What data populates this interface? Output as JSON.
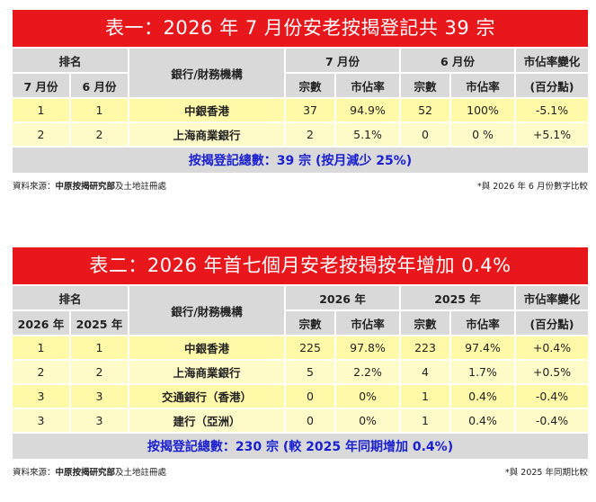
{
  "table1": {
    "title": "表一：2026 年 7 月份安老按揭登記共 39 宗",
    "headers": {
      "rank": "排名",
      "bank": "銀行/財務機構",
      "period_a": "7 月份",
      "period_b": "6 月份",
      "share_change": "市佔率變化",
      "rank_a": "7 月份",
      "rank_b": "6 月份",
      "count_a": "宗數",
      "share_a": "市佔率",
      "count_b": "宗數",
      "share_b": "市佔率",
      "share_change_unit": "(百分點)"
    },
    "rows": [
      {
        "rank_a": "1",
        "rank_b": "1",
        "bank": "中銀香港",
        "count_a": "37",
        "share_a": "94.9%",
        "count_b": "52",
        "share_b": "100%",
        "change": "-5.1%"
      },
      {
        "rank_a": "2",
        "rank_b": "2",
        "bank": "上海商業銀行",
        "count_a": "2",
        "share_a": "5.1%",
        "count_b": "0",
        "share_b": "0 %",
        "change": "+5.1%"
      }
    ],
    "total": "按揭登記總數：39 宗 (按月減少 25%)",
    "source_prefix": "資料來源：",
    "source_bold": "中原按揭研究部",
    "source_suffix": "及土地註冊處",
    "note": "*與 2026 年 6 月份數字比較"
  },
  "table2": {
    "title": "表二：2026 年首七個月安老按揭按年增加 0.4%",
    "headers": {
      "rank": "排名",
      "bank": "銀行/財務機構",
      "period_a": "2026 年",
      "period_b": "2025 年",
      "share_change": "市佔率變化",
      "rank_a": "2026 年",
      "rank_b": "2025 年",
      "count_a": "宗數",
      "share_a": "市佔率",
      "count_b": "宗數",
      "share_b": "市佔率",
      "share_change_unit": "(百分點)"
    },
    "rows": [
      {
        "rank_a": "1",
        "rank_b": "1",
        "bank": "中銀香港",
        "count_a": "225",
        "share_a": "97.8%",
        "count_b": "223",
        "share_b": "97.4%",
        "change": "+0.4%"
      },
      {
        "rank_a": "2",
        "rank_b": "2",
        "bank": "上海商業銀行",
        "count_a": "5",
        "share_a": "2.2%",
        "count_b": "4",
        "share_b": "1.7%",
        "change": "+0.5%"
      },
      {
        "rank_a": "3",
        "rank_b": "3",
        "bank": "交通銀行（香港）",
        "count_a": "0",
        "share_a": "0%",
        "count_b": "1",
        "share_b": "0.4%",
        "change": "-0.4%"
      },
      {
        "rank_a": "3",
        "rank_b": "3",
        "bank": "建行（亞洲）",
        "count_a": "0",
        "share_a": "0%",
        "count_b": "1",
        "share_b": "0.4%",
        "change": "-0.4%"
      }
    ],
    "total": "按揭登記總數：230 宗 (較 2025 年同期增加 0.4%)",
    "source_prefix": "資料來源：",
    "source_bold": "中原按揭研究部",
    "source_suffix": "及土地註冊處",
    "note": "*與 2025 年同期比較"
  },
  "colors": {
    "title_bg": "#e8171c",
    "header_bg": "#d9d9d9",
    "row_bg": "#fff9a8",
    "total_text": "#1a20d0"
  }
}
